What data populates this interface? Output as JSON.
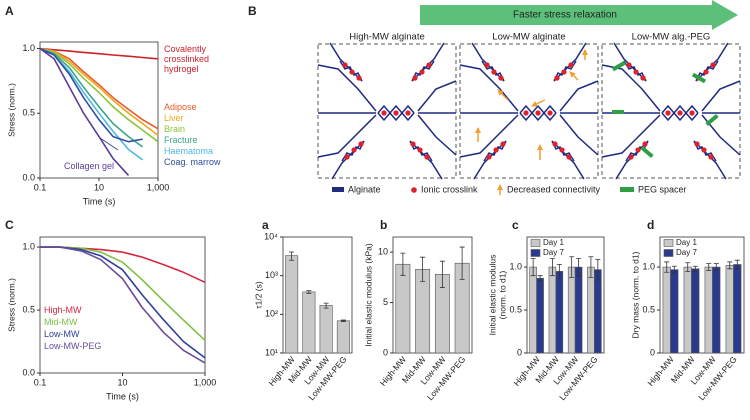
{
  "chart_data": [
    {
      "panel": "A",
      "type": "line",
      "xlabel": "Time (s)",
      "ylabel": "Stress (norm.)",
      "log_x": true,
      "x": [
        0.1,
        0.3,
        1,
        3,
        10,
        30,
        100,
        300,
        1000
      ],
      "xlim": [
        0.1,
        1000
      ],
      "xticks": [
        0.1,
        10,
        {
          "value": 1000,
          "label": "1,000"
        }
      ],
      "ylim": [
        0,
        1.05
      ],
      "yticks": [
        {
          "value": 0,
          "label": "0.0"
        },
        0.5,
        {
          "value": 1,
          "label": "1.0"
        }
      ],
      "series": [
        {
          "name": "Covalently crosslinked hydrogel",
          "color": "#d0202a",
          "values": [
            1,
            0.99,
            0.98,
            0.97,
            0.96,
            0.95,
            0.94,
            0.93,
            0.92
          ]
        },
        {
          "name": "Adipose",
          "color": "#ea5a2a",
          "values": [
            1,
            0.98,
            0.92,
            0.82,
            0.72,
            0.62,
            0.53,
            0.45,
            0.38
          ]
        },
        {
          "name": "Liver",
          "color": "#f0a51e",
          "values": [
            1,
            0.98,
            0.9,
            0.8,
            0.7,
            0.6,
            0.5,
            0.42,
            0.33
          ]
        },
        {
          "name": "Brain",
          "color": "#8cc43e",
          "values": [
            1,
            0.97,
            0.88,
            0.77,
            0.66,
            0.55,
            0.45,
            0.37,
            0.28
          ]
        },
        {
          "name": "Fracture",
          "color": "#3aa78c",
          "values": [
            1,
            0.96,
            0.85,
            0.7,
            0.55,
            0.42,
            0.32,
            0.24,
            null
          ]
        },
        {
          "name": "Haematoma",
          "color": "#4fb8e0",
          "values": [
            1,
            0.95,
            0.82,
            0.66,
            0.5,
            0.36,
            0.22,
            0.14,
            null
          ]
        },
        {
          "name": "Coag. marrow",
          "color": "#2f4f9f",
          "values": [
            1,
            0.95,
            0.8,
            0.62,
            0.45,
            0.32,
            0.28,
            0.3,
            null
          ]
        },
        {
          "name": "Collagen gel",
          "color": "#5a3c9a",
          "values": [
            1,
            0.92,
            0.7,
            0.5,
            0.32,
            0.15,
            0.02,
            null,
            null
          ]
        }
      ]
    },
    {
      "panel": "C",
      "type": "line",
      "xlabel": "Time (s)",
      "ylabel": "Stress (norm.)",
      "log_x": true,
      "x": [
        0.1,
        0.3,
        1,
        3,
        10,
        30,
        100,
        300,
        1000
      ],
      "xlim": [
        0.1,
        1000
      ],
      "xticks": [
        0.1,
        10,
        {
          "value": 1000,
          "label": "1,000"
        }
      ],
      "ylim": [
        0,
        1.08
      ],
      "yticks": [
        {
          "value": 0,
          "label": "0.0"
        },
        0.5,
        {
          "value": 1,
          "label": "1.0"
        }
      ],
      "series": [
        {
          "name": "High-MW",
          "color": "#d7263d",
          "values": [
            1,
            1,
            0.99,
            0.98,
            0.96,
            0.92,
            0.86,
            0.8,
            0.72
          ]
        },
        {
          "name": "Mid-MW",
          "color": "#7dc242",
          "values": [
            1,
            1,
            0.99,
            0.96,
            0.88,
            0.74,
            0.57,
            0.42,
            0.26
          ]
        },
        {
          "name": "Low-MW",
          "color": "#2e3f9a",
          "values": [
            1,
            1,
            0.98,
            0.93,
            0.82,
            0.62,
            0.42,
            0.25,
            0.12
          ]
        },
        {
          "name": "Low-MW-PEG",
          "color": "#6a4c9c",
          "values": [
            1,
            1,
            0.97,
            0.9,
            0.75,
            0.52,
            0.32,
            0.18,
            0.08
          ]
        }
      ]
    },
    {
      "panel": "a",
      "type": "bar",
      "ylabel": "τ1/2 (s)",
      "log_y": true,
      "categories": [
        "High-MW",
        "Mid-MW",
        "Low-MW",
        "Low-MW-PEG"
      ],
      "ylim": [
        10,
        10000
      ],
      "yticks": [
        {
          "value": 10,
          "label": "10¹"
        },
        {
          "value": 100,
          "label": "10²"
        },
        {
          "value": 1000,
          "label": "10³"
        },
        {
          "value": 10000,
          "label": "10⁴"
        }
      ],
      "series": [
        {
          "color": "#c8c8c8",
          "values": [
            3300,
            380,
            170,
            68
          ],
          "errors": [
            800,
            30,
            25,
            3
          ]
        }
      ]
    },
    {
      "panel": "b",
      "type": "bar",
      "ylabel": "Initial elastic modulus (kPa)",
      "categories": [
        "High-MW",
        "Mid-MW",
        "Low-MW",
        "Low-MW-PEG"
      ],
      "ylim": [
        0,
        11.5
      ],
      "yticks": [
        0,
        5,
        10
      ],
      "series": [
        {
          "color": "#c8c8c8",
          "values": [
            8.8,
            8.3,
            7.8,
            8.9
          ],
          "errors": [
            1.1,
            1.2,
            1.3,
            1.6
          ]
        }
      ]
    },
    {
      "panel": "c",
      "type": "bar",
      "ylabel": [
        "Initial elastic modulus",
        "(norm. to d1)"
      ],
      "categories": [
        "High-MW",
        "Mid-MW",
        "Low-MW",
        "Low-MW-PEG"
      ],
      "ylim": [
        0,
        1.35
      ],
      "yticks": [
        0,
        0.5,
        {
          "value": 1,
          "label": "1.0"
        }
      ],
      "series": [
        {
          "name": "Day 1",
          "color": "#c8c8c8",
          "values": [
            1,
            1,
            1,
            1
          ],
          "errors": [
            0.1,
            0.1,
            0.12,
            0.12
          ]
        },
        {
          "name": "Day 7",
          "color": "#2a3a8c",
          "values": [
            0.87,
            0.95,
            1,
            0.97
          ],
          "errors": [
            0.03,
            0.08,
            0.1,
            0.12
          ]
        }
      ]
    },
    {
      "panel": "d",
      "type": "bar",
      "ylabel": "Dry mass (norm. to d1)",
      "categories": [
        "High-MW",
        "Mid-MW",
        "Low-MW",
        "Low-MW-PEG"
      ],
      "ylim": [
        0,
        1.35
      ],
      "yticks": [
        0,
        0.5,
        {
          "value": 1,
          "label": "1.0"
        }
      ],
      "series": [
        {
          "name": "Day 1",
          "color": "#c8c8c8",
          "values": [
            1,
            1,
            1,
            1.02
          ],
          "errors": [
            0.06,
            0.05,
            0.04,
            0.04
          ]
        },
        {
          "name": "Day 7",
          "color": "#2a3a8c",
          "values": [
            0.97,
            0.98,
            1,
            1.03
          ],
          "errors": [
            0.04,
            0.03,
            0.04,
            0.05
          ]
        }
      ]
    }
  ],
  "diagram": {
    "panel": "B",
    "arrow": "Faster stress relaxation",
    "boxes": [
      "High-MW alginate",
      "Low-MW alginate",
      "Low-MW alg.-PEG"
    ],
    "legend": [
      "Alginate",
      "Ionic crosslink",
      "Decreased connectivity",
      "PEG spacer"
    ]
  }
}
